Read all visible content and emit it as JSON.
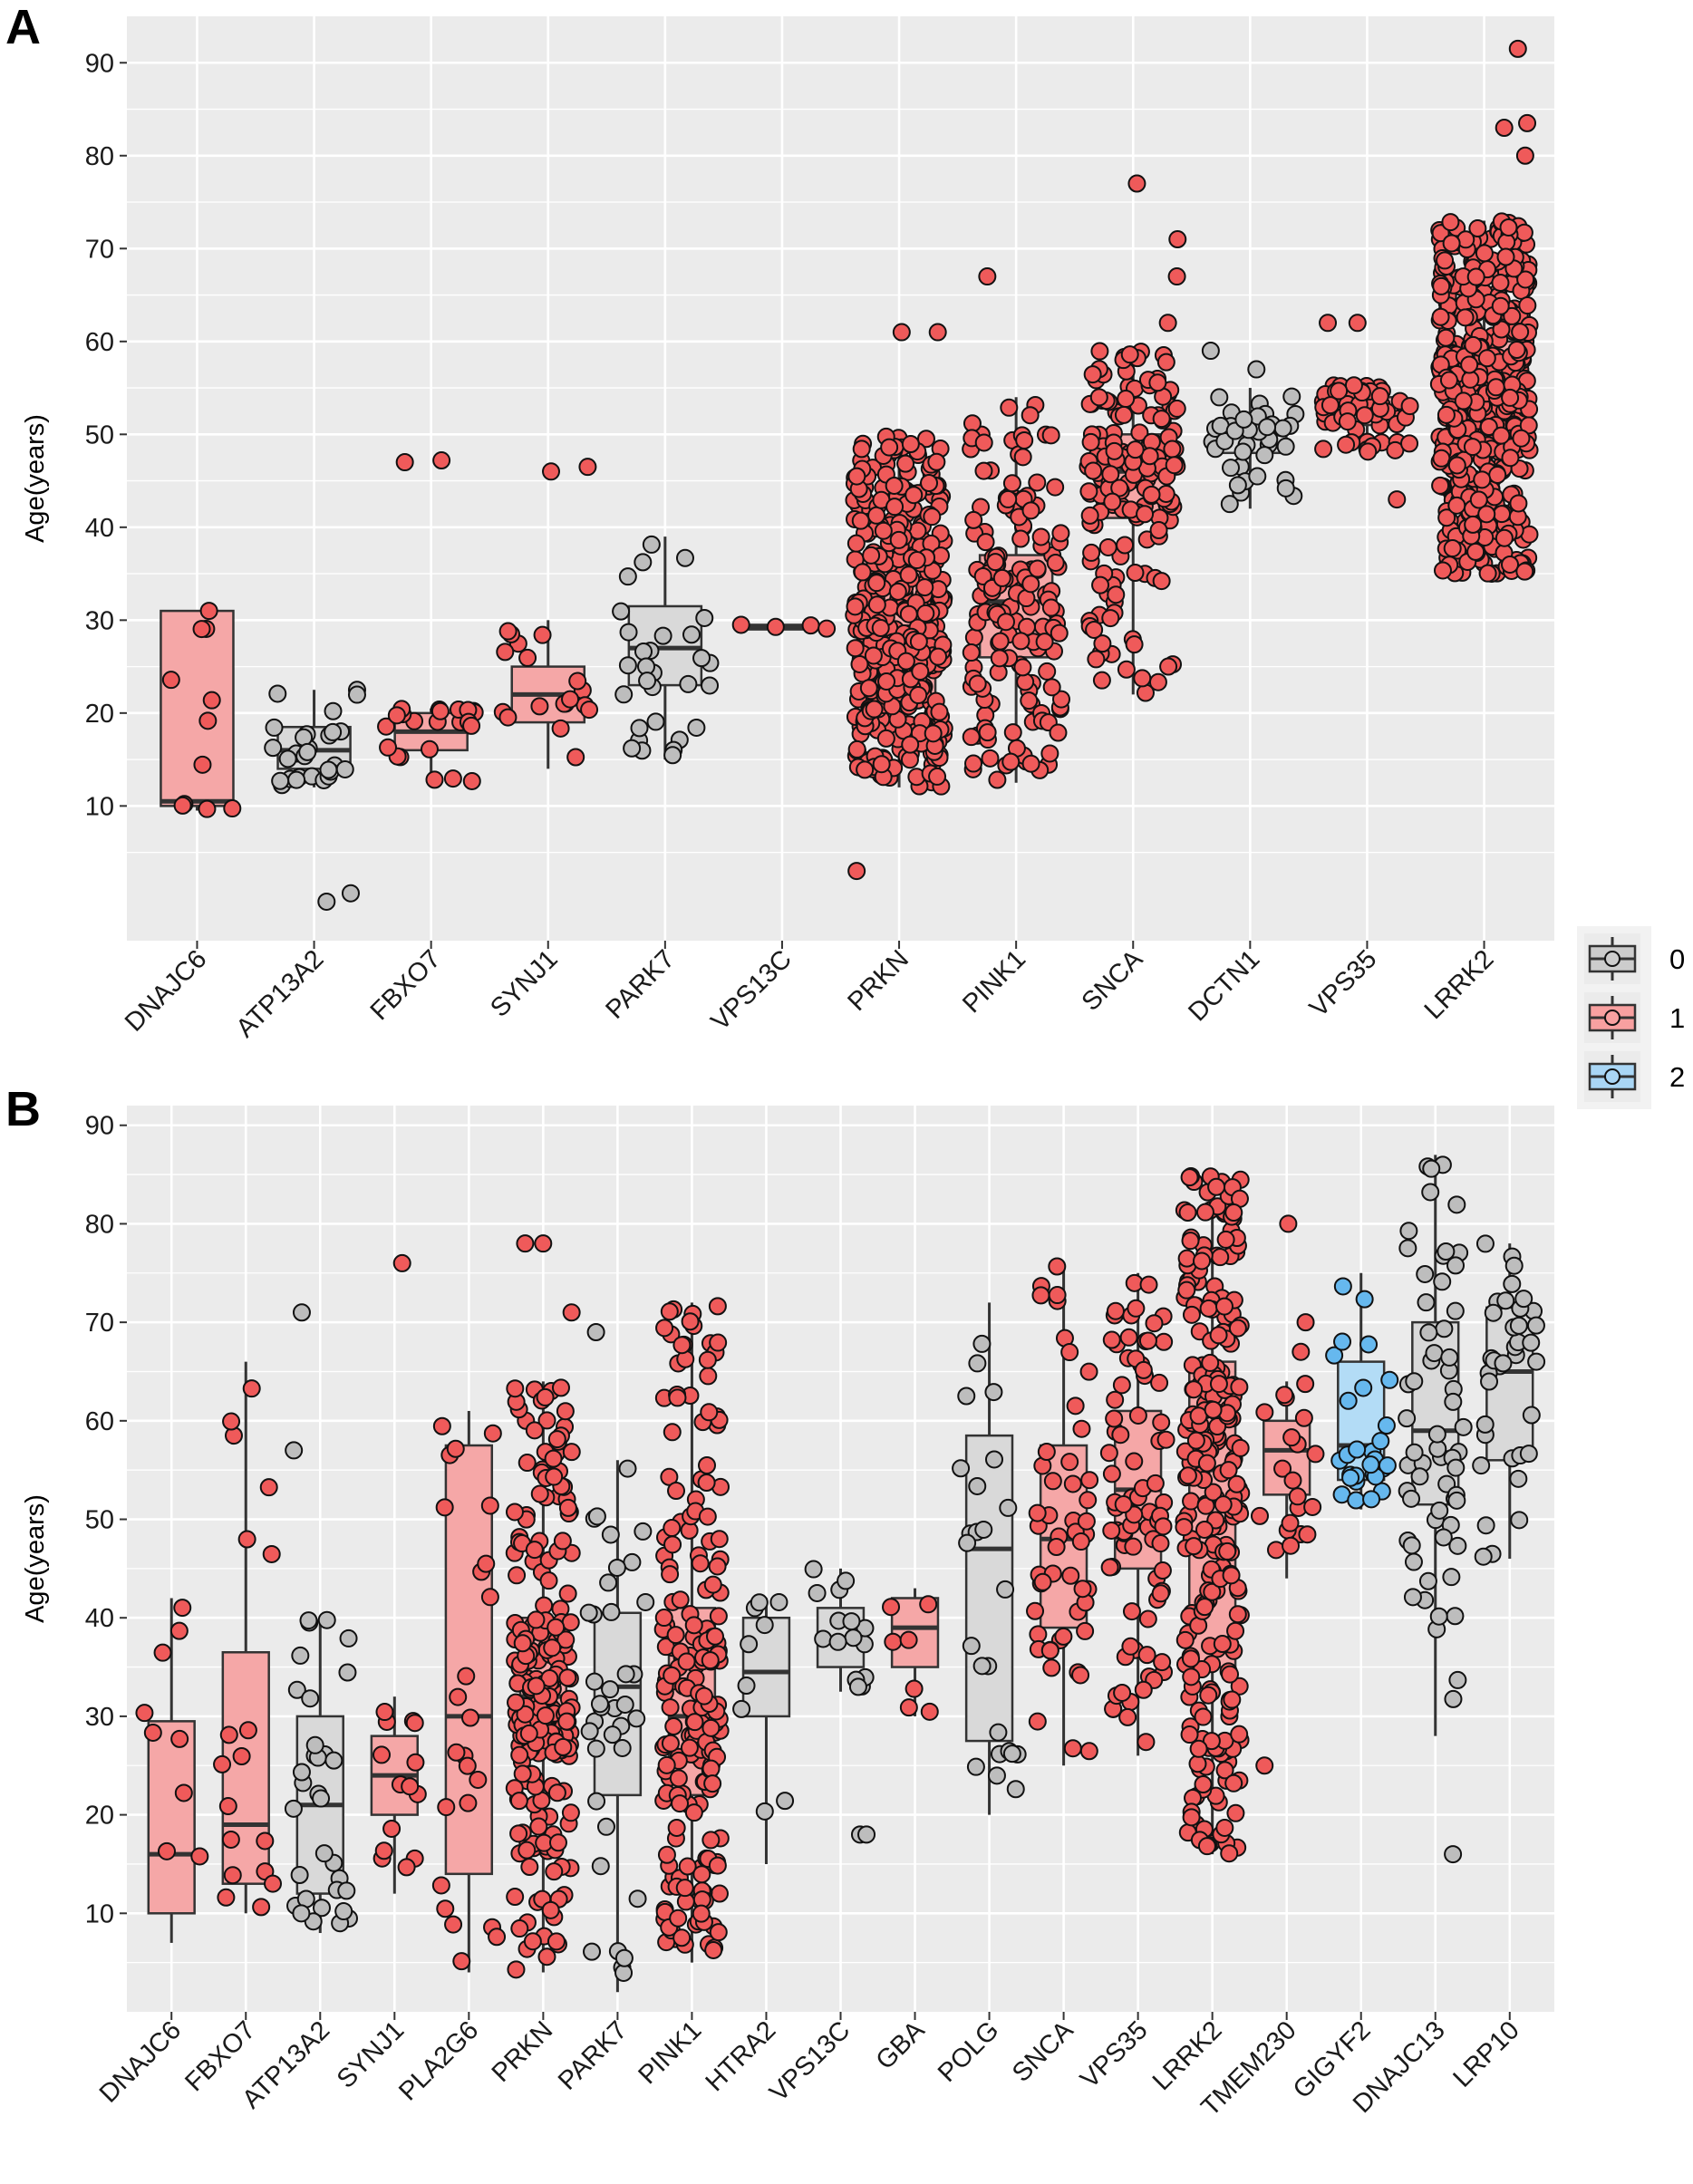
{
  "chart_data": [
    {
      "panel": "A",
      "type": "boxplot_jitter",
      "ylabel": "Age(years)",
      "xlabel": "",
      "ylim": [
        -4.5,
        95
      ],
      "yticks": [
        10,
        20,
        30,
        40,
        50,
        60,
        70,
        80,
        90
      ],
      "grid": true,
      "groups": [
        {
          "label": "DNAJC6",
          "cls": 1,
          "box": [
            9.5,
            10,
            10.5,
            31,
            31
          ],
          "n": 11,
          "outliers": []
        },
        {
          "label": "ATP13A2",
          "cls": 0,
          "box": [
            12,
            14,
            16,
            18.5,
            22.5
          ],
          "n": 28,
          "outliers": [
            0.6,
            -0.3
          ]
        },
        {
          "label": "FBXO7",
          "cls": 1,
          "box": [
            12,
            16,
            18,
            20,
            20.5
          ],
          "n": 22,
          "outliers": [
            47.2,
            47
          ]
        },
        {
          "label": "SYNJ1",
          "cls": 1,
          "box": [
            14,
            19,
            22,
            25,
            30
          ],
          "n": 18,
          "outliers": [
            46,
            46.5
          ]
        },
        {
          "label": "PARK7",
          "cls": 0,
          "box": [
            15,
            23,
            27,
            31.5,
            39
          ],
          "n": 30,
          "outliers": []
        },
        {
          "label": "VPS13C",
          "cls": 1,
          "box": [
            29,
            29,
            29.2,
            29.5,
            29.5
          ],
          "n": 4,
          "outliers": []
        },
        {
          "label": "PRKN",
          "cls": 1,
          "box": [
            12,
            22,
            29,
            37,
            50
          ],
          "n": 420,
          "outliers": [
            3,
            61,
            61
          ]
        },
        {
          "label": "PINK1",
          "cls": 1,
          "box": [
            12.5,
            26,
            32,
            37,
            54
          ],
          "n": 160,
          "outliers": [
            67
          ]
        },
        {
          "label": "SNCA",
          "cls": 1,
          "box": [
            22,
            41,
            46,
            50,
            59
          ],
          "n": 180,
          "outliers": [
            62,
            67,
            71,
            77
          ]
        },
        {
          "label": "DCTN1",
          "cls": 0,
          "box": [
            42,
            48,
            50,
            51,
            55
          ],
          "n": 40,
          "outliers": [
            57,
            59
          ]
        },
        {
          "label": "VPS35",
          "cls": 1,
          "box": [
            48,
            51,
            53,
            54,
            55.5
          ],
          "n": 60,
          "outliers": [
            43,
            62,
            62
          ]
        },
        {
          "label": "LRRK2",
          "cls": 1,
          "box": [
            35,
            48,
            54,
            60,
            73
          ],
          "n": 520,
          "outliers": [
            80,
            83,
            83.5,
            91.5
          ]
        }
      ]
    },
    {
      "panel": "B",
      "type": "boxplot_jitter",
      "ylabel": "Age(years)",
      "xlabel": "",
      "ylim": [
        0,
        92
      ],
      "yticks": [
        10,
        20,
        30,
        40,
        50,
        60,
        70,
        80,
        90
      ],
      "grid": true,
      "groups": [
        {
          "label": "DNAJC6",
          "cls": 1,
          "box": [
            7,
            10,
            16,
            29.5,
            42
          ],
          "n": 9,
          "outliers": []
        },
        {
          "label": "FBXO7",
          "cls": 1,
          "box": [
            10,
            13,
            19,
            36.5,
            66
          ],
          "n": 18,
          "outliers": []
        },
        {
          "label": "ATP13A2",
          "cls": 0,
          "box": [
            8,
            12,
            21,
            30,
            40
          ],
          "n": 32,
          "outliers": [
            57,
            71
          ]
        },
        {
          "label": "SYNJ1",
          "cls": 1,
          "box": [
            12,
            20,
            24,
            28,
            32
          ],
          "n": 14,
          "outliers": [
            76
          ]
        },
        {
          "label": "PLA2G6",
          "cls": 1,
          "box": [
            4,
            14,
            30,
            57.5,
            61
          ],
          "n": 24,
          "outliers": []
        },
        {
          "label": "PRKN",
          "cls": 1,
          "box": [
            4,
            26,
            32,
            40,
            64
          ],
          "n": 230,
          "outliers": [
            71,
            78,
            78
          ]
        },
        {
          "label": "PARK7",
          "cls": 0,
          "box": [
            2,
            22,
            33,
            40.5,
            56
          ],
          "n": 36,
          "outliers": [
            69
          ]
        },
        {
          "label": "PINK1",
          "cls": 1,
          "box": [
            5,
            22,
            30,
            41,
            72
          ],
          "n": 200,
          "outliers": []
        },
        {
          "label": "HTRA2",
          "cls": 0,
          "box": [
            15,
            30,
            34.5,
            40,
            42
          ],
          "n": 9,
          "outliers": []
        },
        {
          "label": "VPS13C",
          "cls": 0,
          "box": [
            32.5,
            35,
            38,
            41,
            45
          ],
          "n": 15,
          "outliers": [
            18,
            18
          ]
        },
        {
          "label": "GBA",
          "cls": 1,
          "box": [
            30,
            35,
            39,
            42,
            43
          ],
          "n": 7,
          "outliers": []
        },
        {
          "label": "POLG",
          "cls": 0,
          "box": [
            20,
            27.5,
            47,
            58.5,
            72
          ],
          "n": 24,
          "outliers": []
        },
        {
          "label": "SNCA",
          "cls": 1,
          "box": [
            25,
            39,
            48,
            57.5,
            76
          ],
          "n": 50,
          "outliers": []
        },
        {
          "label": "VPS35",
          "cls": 1,
          "box": [
            26,
            45,
            53,
            61,
            75
          ],
          "n": 80,
          "outliers": []
        },
        {
          "label": "LRRK2",
          "cls": 1,
          "box": [
            16,
            35,
            55,
            66,
            85
          ],
          "n": 260,
          "outliers": []
        },
        {
          "label": "TMEM230",
          "cls": 1,
          "box": [
            44,
            52.5,
            57,
            60,
            64
          ],
          "n": 20,
          "outliers": [
            25,
            67,
            70,
            80
          ]
        },
        {
          "label": "GIGYF2",
          "cls": 2,
          "box": [
            51,
            54,
            57.5,
            66,
            75
          ],
          "n": 28,
          "outliers": []
        },
        {
          "label": "DNAJC13",
          "cls": 0,
          "box": [
            28,
            51.5,
            59,
            70,
            87
          ],
          "n": 60,
          "outliers": [
            16
          ]
        },
        {
          "label": "LRP10",
          "cls": 0,
          "box": [
            46,
            56,
            65,
            71.5,
            78
          ],
          "n": 36,
          "outliers": []
        }
      ]
    }
  ],
  "legend": {
    "position": "right",
    "items": [
      {
        "label": "0",
        "fill": "#cccccc"
      },
      {
        "label": "1",
        "fill": "#f8a0a0"
      },
      {
        "label": "2",
        "fill": "#a9d6f5"
      }
    ]
  },
  "colors": {
    "panel_bg": "#ebebeb",
    "grid": "#ffffff",
    "box_stroke": "#333333",
    "point_fill_0": "#bdbdbd",
    "point_fill_1": "#ef5a5a",
    "point_fill_2": "#66b8ee",
    "box_fill_0": "#d9d9d9",
    "box_fill_1": "#f5a7a7",
    "box_fill_2": "#b3dcf6"
  },
  "panel_labels": [
    "A",
    "B"
  ]
}
